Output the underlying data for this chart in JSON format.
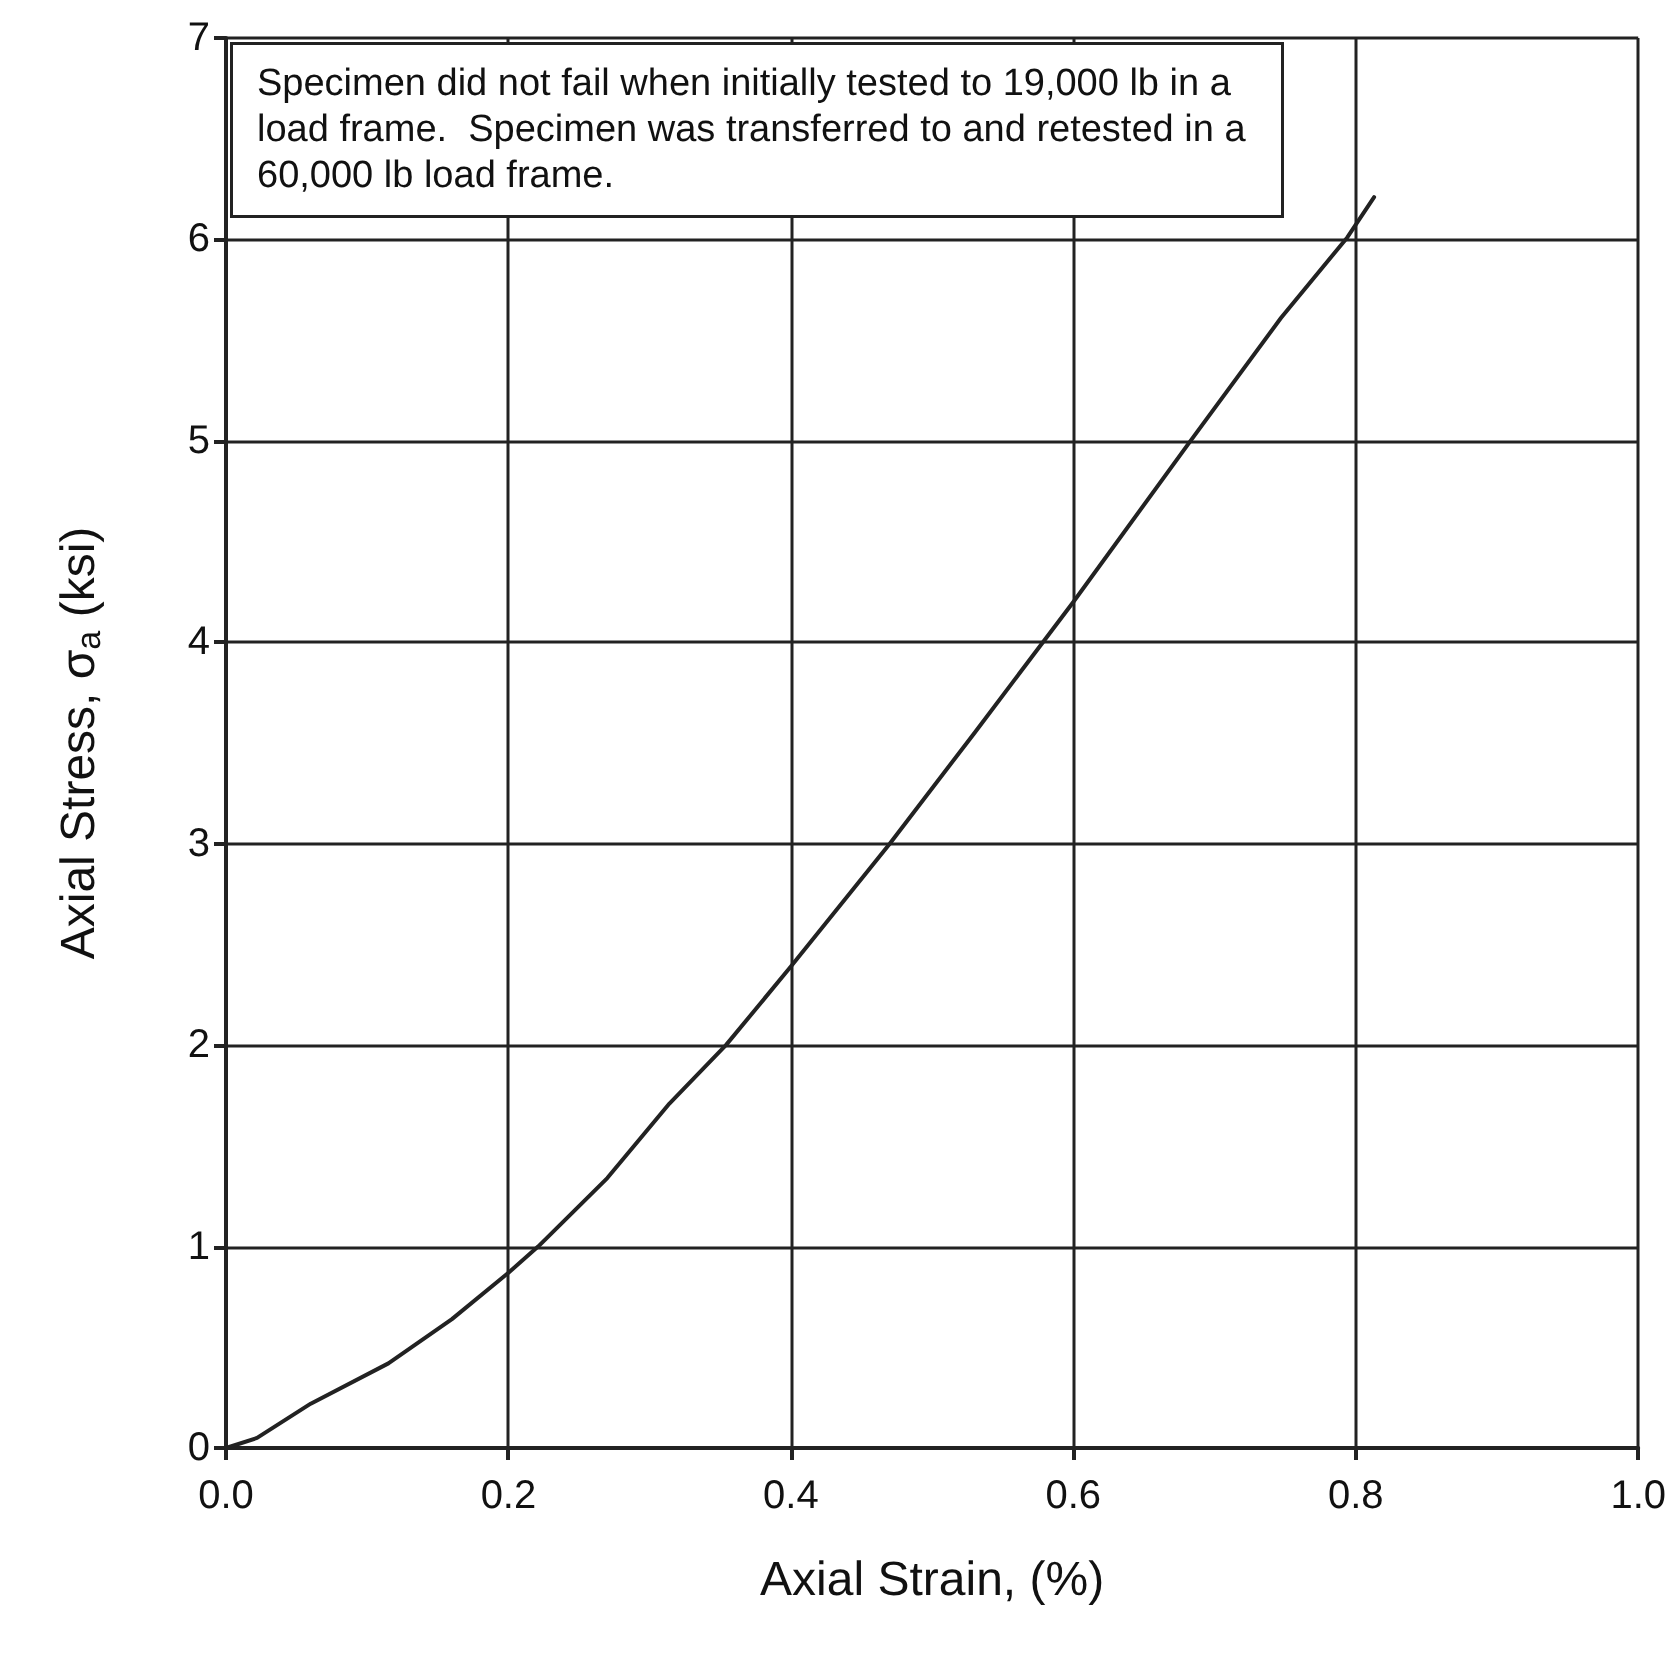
{
  "chart_data": {
    "type": "line",
    "xlabel": "Axial Strain, (%)",
    "ylabel": "Axial Stress, σ$_{a}$ (ksi)",
    "annotations": [
      "Specimen did not fail when initially tested to 19,000 lb in a load frame.  Specimen was transferred to and retested in a 60,000 lb load frame."
    ],
    "x": [
      0,
      0.022,
      0.06,
      0.115,
      0.16,
      0.2,
      0.221,
      0.27,
      0.314,
      0.354,
      0.4,
      0.47,
      0.53,
      0.6,
      0.683,
      0.747,
      0.794,
      0.813
    ],
    "series": [
      {
        "color": "#222222",
        "values": [
          0,
          0.05,
          0.22,
          0.42,
          0.64,
          0.87,
          1.0,
          1.34,
          1.71,
          2.0,
          2.39,
          3.0,
          3.55,
          4.2,
          5.0,
          5.61,
          6.01,
          6.21
        ]
      }
    ],
    "xlim": [
      0,
      1
    ],
    "xticks": [
      {
        "value": 0,
        "label": "0.0"
      },
      0.2,
      0.4,
      0.6,
      0.8,
      {
        "value": 1,
        "label": "1.0"
      }
    ],
    "ylim": [
      0,
      7
    ],
    "yticks": [
      0,
      1,
      2,
      3,
      4,
      5,
      6,
      7
    ],
    "grid": true,
    "marker": "none",
    "line_style": "solid"
  }
}
